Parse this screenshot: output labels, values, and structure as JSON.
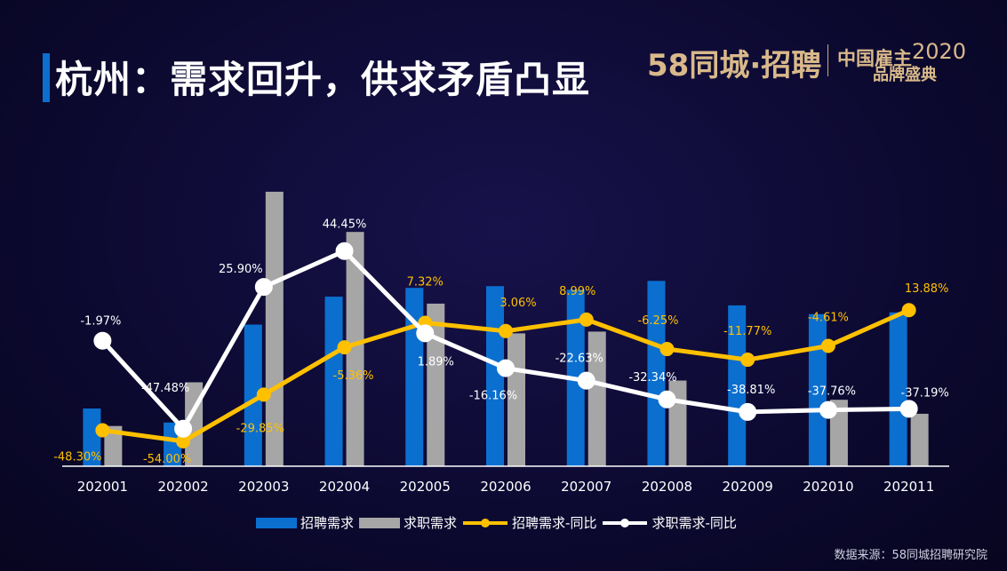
{
  "header": {
    "title": "杭州：需求回升，供求矛盾凸显",
    "brand": "58同城·招聘",
    "event_line1": "中国雇主",
    "event_year": "2020",
    "event_line2": "品牌盛典"
  },
  "source_note": "数据来源：58同城招聘研究院",
  "colors": {
    "bar_recruit": "#0b6fd0",
    "bar_jobseek": "#a6a6a6",
    "line_recruit": "#ffc000",
    "line_jobseek": "#ffffff",
    "axis": "#ffffff"
  },
  "chart_data": {
    "type": "bar",
    "categories": [
      "202001",
      "202002",
      "202003",
      "202004",
      "202005",
      "202006",
      "202007",
      "202008",
      "202009",
      "202010",
      "202011"
    ],
    "series": [
      {
        "name": "招聘需求",
        "type": "bar",
        "values": [
          33,
          25,
          81,
          97,
          102,
          103,
          101,
          106,
          92,
          87,
          88
        ]
      },
      {
        "name": "求职需求",
        "type": "bar",
        "values": [
          23,
          48,
          157,
          134,
          93,
          76,
          77,
          49,
          0,
          38,
          30
        ]
      },
      {
        "name": "招聘需求-同比",
        "type": "line",
        "values": [
          -48.3,
          -54.0,
          -29.85,
          -5.36,
          7.32,
          3.06,
          8.99,
          -6.25,
          -11.77,
          -4.61,
          13.88
        ],
        "labels": [
          "-48.30%",
          "-54.00%",
          "-29.85%",
          "-5.36%",
          "7.32%",
          "3.06%",
          "8.99%",
          "-6.25%",
          "-11.77%",
          "-4.61%",
          "13.88%"
        ]
      },
      {
        "name": "求职需求-同比",
        "type": "line",
        "values": [
          -1.97,
          -47.48,
          25.9,
          44.45,
          1.89,
          -16.16,
          -22.63,
          -32.34,
          -38.81,
          -37.76,
          -37.19
        ],
        "labels": [
          "-1.97%",
          "-47.48%",
          "25.90%",
          "44.45%",
          "1.89%",
          "-16.16%",
          "-22.63%",
          "-32.34%",
          "-38.81%",
          "-37.76%",
          "-37.19%"
        ]
      }
    ],
    "bar_axis_range": [
      0,
      160
    ],
    "line_axis_range": [
      -60,
      65
    ],
    "grid": false,
    "legend_position": "bottom"
  }
}
